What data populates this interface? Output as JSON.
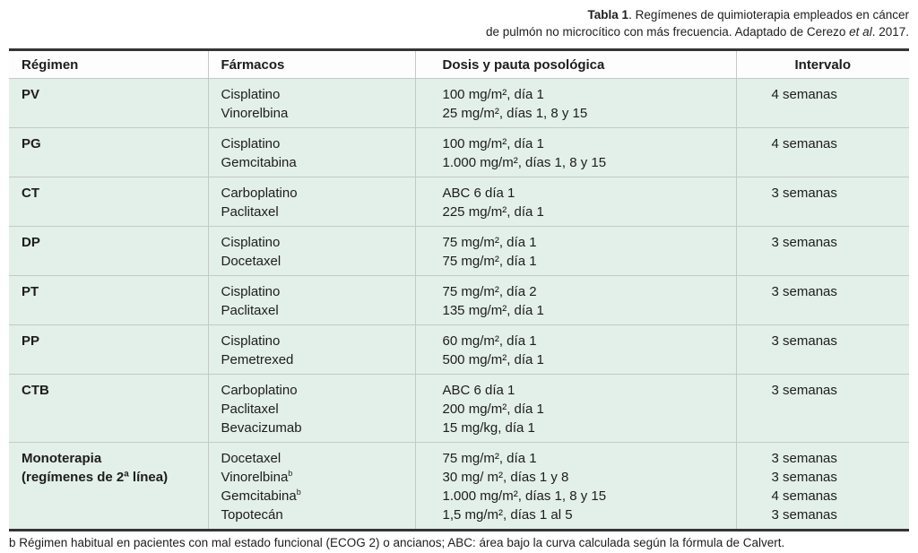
{
  "title": {
    "label": "Tabla 1",
    "line1_rest": ". Regímenes de quimioterapia empleados en cáncer",
    "line2_start": "de pulmón no microcítico con más frecuencia. Adaptado de Cerezo ",
    "line2_italic": "et al",
    "line2_end": ". 2017."
  },
  "table": {
    "columns": [
      "Régimen",
      "Fármacos",
      "Dosis y pauta posológica",
      "Intervalo"
    ],
    "rows": [
      {
        "regimen_lines": [
          "PV"
        ],
        "drugs": [
          {
            "name": "Cisplatino"
          },
          {
            "name": "Vinorelbina"
          }
        ],
        "doses": [
          "100 mg/m², día 1",
          "25 mg/m², días 1, 8 y 15"
        ],
        "intervals": [
          "4 semanas"
        ]
      },
      {
        "regimen_lines": [
          "PG"
        ],
        "drugs": [
          {
            "name": "Cisplatino"
          },
          {
            "name": "Gemcitabina"
          }
        ],
        "doses": [
          "100 mg/m², día 1",
          "1.000 mg/m², días 1, 8 y 15"
        ],
        "intervals": [
          "4 semanas"
        ]
      },
      {
        "regimen_lines": [
          "CT"
        ],
        "drugs": [
          {
            "name": "Carboplatino"
          },
          {
            "name": "Paclitaxel"
          }
        ],
        "doses": [
          "ABC 6 día 1",
          "225 mg/m², día 1"
        ],
        "intervals": [
          "3 semanas"
        ]
      },
      {
        "regimen_lines": [
          "DP"
        ],
        "drugs": [
          {
            "name": "Cisplatino"
          },
          {
            "name": "Docetaxel"
          }
        ],
        "doses": [
          "75 mg/m², día 1",
          "75 mg/m², día 1"
        ],
        "intervals": [
          "3 semanas"
        ]
      },
      {
        "regimen_lines": [
          "PT"
        ],
        "drugs": [
          {
            "name": "Cisplatino"
          },
          {
            "name": "Paclitaxel"
          }
        ],
        "doses": [
          "75 mg/m², día 2",
          "135 mg/m², día 1"
        ],
        "intervals": [
          "3 semanas"
        ]
      },
      {
        "regimen_lines": [
          "PP"
        ],
        "drugs": [
          {
            "name": "Cisplatino"
          },
          {
            "name": "Pemetrexed"
          }
        ],
        "doses": [
          "60 mg/m², día 1",
          "500 mg/m², día 1"
        ],
        "intervals": [
          "3 semanas"
        ]
      },
      {
        "regimen_lines": [
          "CTB"
        ],
        "drugs": [
          {
            "name": "Carboplatino"
          },
          {
            "name": "Paclitaxel"
          },
          {
            "name": "Bevacizumab"
          }
        ],
        "doses": [
          "ABC 6 día 1",
          "200 mg/m², día 1",
          "15 mg/kg, día 1"
        ],
        "intervals": [
          "3 semanas"
        ]
      },
      {
        "regimen_lines": [
          "Monoterapia",
          "(regímenes de 2ª línea)"
        ],
        "drugs": [
          {
            "name": "Docetaxel"
          },
          {
            "name": "Vinorelbina",
            "sup": "b"
          },
          {
            "name": "Gemcitabina",
            "sup": "b"
          },
          {
            "name": "Topotecán"
          }
        ],
        "doses": [
          "75 mg/m², día 1",
          "30 mg/ m², días 1 y 8",
          "1.000 mg/m², días 1, 8 y 15",
          "1,5 mg/m², días 1 al 5"
        ],
        "intervals": [
          "3 semanas",
          "3 semanas",
          "4 semanas",
          "3 semanas"
        ]
      }
    ]
  },
  "footnote": "b Régimen habitual en pacientes con mal estado funcional (ECOG 2) o ancianos; ABC: área bajo la curva calculada según la fórmula de Calvert.",
  "colors": {
    "row_bg": "#e3efe9",
    "header_bg": "#fdfdfd",
    "grid_line": "#c3cac5",
    "heavy_border": "#343434",
    "text": "#1d1d1d"
  }
}
